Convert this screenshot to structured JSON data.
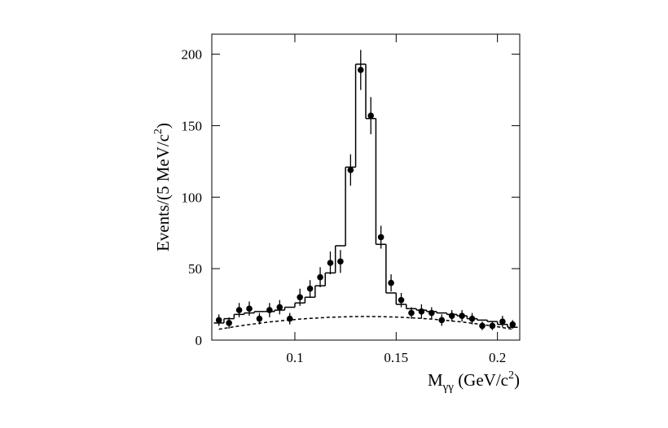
{
  "chart_data": {
    "type": "errorbar",
    "xlabel": [
      "M",
      "γγ",
      " (GeV/c",
      "2",
      ")"
    ],
    "ylabel": [
      "Events/(5 MeV/c",
      "2",
      ")"
    ],
    "x": [
      0.0625,
      0.0675,
      0.0725,
      0.0775,
      0.0825,
      0.0875,
      0.0925,
      0.0975,
      0.1025,
      0.1075,
      0.1125,
      0.1175,
      0.1225,
      0.1275,
      0.1325,
      0.1375,
      0.1425,
      0.1475,
      0.1525,
      0.1575,
      0.1625,
      0.1675,
      0.1725,
      0.1775,
      0.1825,
      0.1875,
      0.1925,
      0.1975,
      0.2025,
      0.2075
    ],
    "bin_width": 0.005,
    "data": {
      "color": "#000000",
      "values": [
        14,
        12,
        21,
        22,
        15,
        21,
        23,
        15,
        30,
        36,
        44,
        54,
        55,
        119,
        189,
        157,
        72,
        40,
        28,
        19,
        20,
        19,
        14,
        17,
        17,
        15,
        10,
        10,
        13,
        11
      ],
      "errors": [
        4,
        4,
        5,
        5,
        4,
        5,
        5,
        4,
        6,
        6,
        7,
        8,
        8,
        11,
        14,
        13,
        8,
        6,
        5,
        4,
        5,
        4,
        4,
        4,
        4,
        4,
        3,
        3,
        4,
        3
      ]
    },
    "fit": {
      "color": "#000000",
      "values": [
        12,
        15,
        18,
        19,
        20,
        20,
        21,
        23,
        26,
        30,
        38,
        47,
        66,
        121,
        193,
        155,
        67,
        33,
        25,
        22,
        21,
        20,
        19,
        18,
        17,
        15,
        14,
        13,
        11,
        9
      ]
    },
    "background": {
      "color": "#000000",
      "dashed": true,
      "values": [
        7.6,
        8.8,
        9.9,
        10.9,
        11.8,
        12.7,
        13.4,
        14.1,
        14.7,
        15.2,
        15.6,
        16.0,
        16.2,
        16.4,
        16.5,
        16.5,
        16.4,
        16.2,
        16.0,
        15.6,
        15.2,
        14.7,
        14.1,
        13.4,
        12.7,
        11.8,
        10.9,
        9.9,
        8.8,
        7.6
      ]
    },
    "xlim": [
      0.059,
      0.211
    ],
    "xticks": [
      0.1,
      0.15,
      0.2
    ],
    "ylim": [
      0,
      214
    ],
    "yticks": [
      0,
      50,
      100,
      150,
      200
    ]
  }
}
